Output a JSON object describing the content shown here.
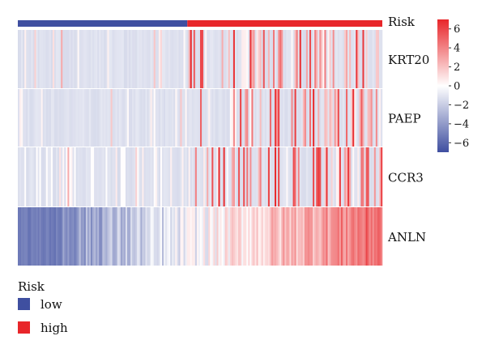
{
  "chart_data": {
    "type": "heatmap",
    "title": "",
    "annotation_track": {
      "label": "Risk",
      "groups": [
        {
          "name": "low",
          "color": "#3f4fa0",
          "fraction": 0.465
        },
        {
          "name": "high",
          "color": "#e8262a",
          "fraction": 0.535
        }
      ]
    },
    "rows": [
      "KRT20",
      "PAEP",
      "CCR3",
      "ANLN"
    ],
    "n_samples": 220,
    "color_scale": {
      "min": -7,
      "max": 7,
      "low_color": "#3f4fa0",
      "mid_color": "#ffffff",
      "high_color": "#e8262a",
      "ticks": [
        "6",
        "4",
        "2",
        "0",
        "−2",
        "−4",
        "−6"
      ],
      "tick_values": [
        6,
        4,
        2,
        0,
        -2,
        -4,
        -6
      ]
    },
    "legend": {
      "title": "Risk",
      "placement": "bottom-left",
      "items": [
        {
          "label": "low",
          "color": "#3f4fa0"
        },
        {
          "label": "high",
          "color": "#e8262a"
        }
      ]
    }
  }
}
